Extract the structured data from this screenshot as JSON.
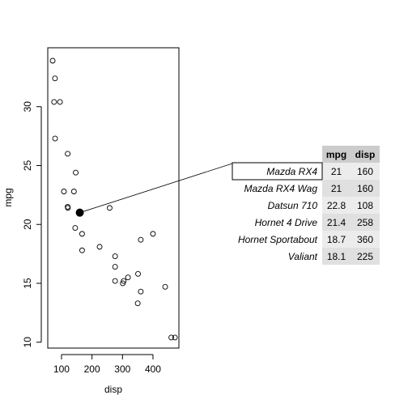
{
  "chart_data": {
    "type": "scatter",
    "xlabel": "disp",
    "ylabel": "mpg",
    "xlim": [
      55,
      485
    ],
    "ylim": [
      9.5,
      35
    ],
    "xticks": [
      100,
      200,
      300,
      400
    ],
    "yticks": [
      10,
      15,
      20,
      25,
      30
    ],
    "points": [
      {
        "x": 71.1,
        "y": 33.9
      },
      {
        "x": 75.7,
        "y": 30.4
      },
      {
        "x": 78.7,
        "y": 32.4
      },
      {
        "x": 79.0,
        "y": 27.3
      },
      {
        "x": 95.1,
        "y": 30.4
      },
      {
        "x": 108.0,
        "y": 22.8
      },
      {
        "x": 120.1,
        "y": 21.5
      },
      {
        "x": 120.3,
        "y": 26.0
      },
      {
        "x": 121.0,
        "y": 21.4
      },
      {
        "x": 140.8,
        "y": 22.8
      },
      {
        "x": 145.0,
        "y": 19.7
      },
      {
        "x": 146.7,
        "y": 24.4
      },
      {
        "x": 160.0,
        "y": 21.0
      },
      {
        "x": 160.0,
        "y": 21.0
      },
      {
        "x": 167.6,
        "y": 19.2
      },
      {
        "x": 167.6,
        "y": 17.8
      },
      {
        "x": 225.0,
        "y": 18.1
      },
      {
        "x": 258.0,
        "y": 21.4
      },
      {
        "x": 275.8,
        "y": 16.4
      },
      {
        "x": 275.8,
        "y": 17.3
      },
      {
        "x": 275.8,
        "y": 15.2
      },
      {
        "x": 301.0,
        "y": 15.0
      },
      {
        "x": 304.0,
        "y": 15.2
      },
      {
        "x": 318.0,
        "y": 15.5
      },
      {
        "x": 350.0,
        "y": 13.3
      },
      {
        "x": 351.0,
        "y": 15.8
      },
      {
        "x": 360.0,
        "y": 18.7
      },
      {
        "x": 360.0,
        "y": 14.3
      },
      {
        "x": 400.0,
        "y": 19.2
      },
      {
        "x": 440.0,
        "y": 14.7
      },
      {
        "x": 460.0,
        "y": 10.4
      },
      {
        "x": 472.0,
        "y": 10.4
      }
    ],
    "highlighted_point": {
      "x": 160,
      "y": 21.0,
      "label": "Mazda RX4"
    }
  },
  "table": {
    "columns": [
      "mpg",
      "disp"
    ],
    "rows": [
      {
        "name": "Mazda RX4",
        "mpg": "21",
        "disp": "160",
        "highlighted": true
      },
      {
        "name": "Mazda RX4 Wag",
        "mpg": "21",
        "disp": "160"
      },
      {
        "name": "Datsun 710",
        "mpg": "22.8",
        "disp": "108"
      },
      {
        "name": "Hornet 4 Drive",
        "mpg": "21.4",
        "disp": "258"
      },
      {
        "name": "Hornet Sportabout",
        "mpg": "18.7",
        "disp": "360"
      },
      {
        "name": "Valiant",
        "mpg": "18.1",
        "disp": "225"
      }
    ]
  },
  "colors": {
    "header_bg": "#cccccc",
    "row_odd_bg": "#ececec",
    "row_even_bg": "#e0e0e0",
    "highlight_box": "#000000"
  }
}
